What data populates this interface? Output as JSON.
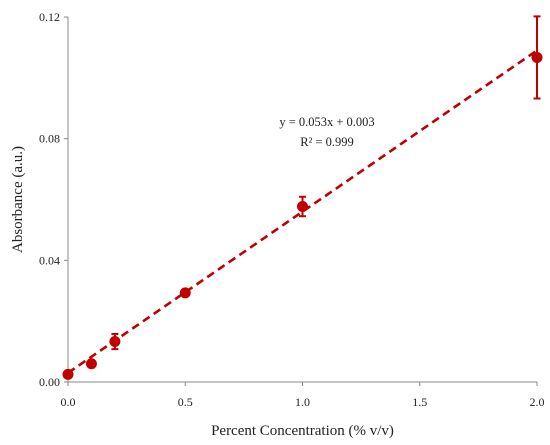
{
  "chart_data": {
    "type": "scatter",
    "xlabel": "Percent Concentration (% v/v)",
    "ylabel": "Absorbance  (a.u.)",
    "xlim": [
      0,
      2
    ],
    "ylim": [
      0,
      0.12
    ],
    "x_ticks": [
      "0.0",
      "0.5",
      "1.0",
      "1.5",
      "2.0"
    ],
    "y_ticks": [
      "0.00",
      "0.04",
      "0.08",
      "0.12"
    ],
    "grid": false,
    "series": [
      {
        "x": [
          0.0,
          0.1,
          0.2,
          0.5,
          1.0,
          2.0
        ],
        "y": [
          0.0025,
          0.006,
          0.0133,
          0.0293,
          0.0577,
          0.1067
        ],
        "y_error": [
          0.0005,
          0.0006,
          0.0025,
          0.0008,
          0.0032,
          0.0135
        ],
        "color": "#c00000",
        "marker": "circle",
        "error_bars": true
      }
    ],
    "trendline": {
      "type": "linear",
      "slope": 0.053,
      "intercept": 0.003,
      "x_range": [
        0,
        2
      ],
      "style": "dashed",
      "color": "#c00000"
    },
    "annotations": [
      "y = 0.053x + 0.003",
      "R² = 0.999"
    ]
  }
}
